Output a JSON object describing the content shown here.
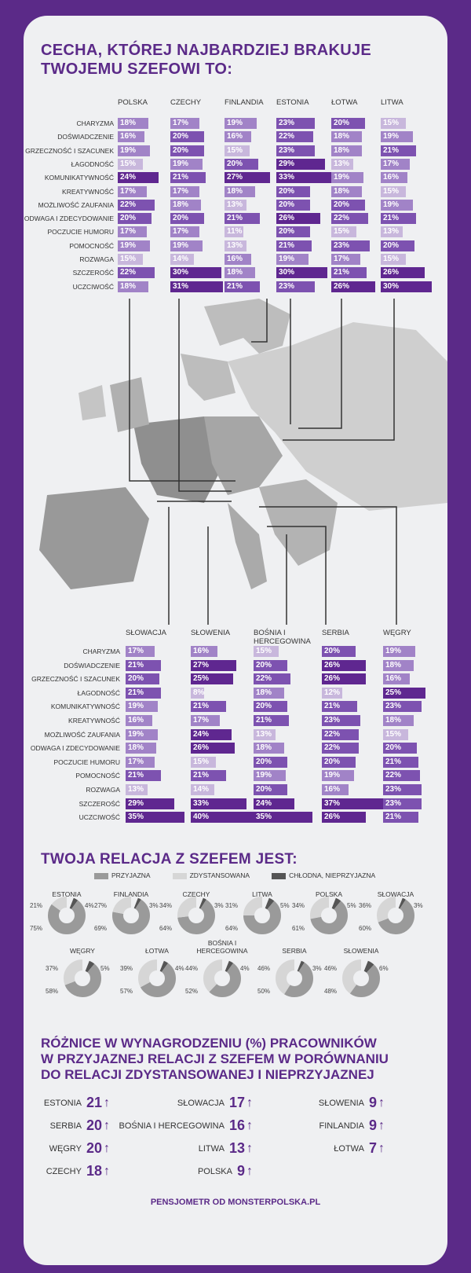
{
  "title_line1": "CECHA, KTÓREJ NAJBARDZIEJ BRAKUJE",
  "title_line2": "TWOJEMU SZEFOWI TO:",
  "traits": [
    "CHARYZMA",
    "DOŚWIADCZENIE",
    "GRZECZNOŚĆ I SZACUNEK",
    "ŁAGODNOŚĆ",
    "KOMUNIKATYWNOŚĆ",
    "KREATYWNOŚĆ",
    "MOŻLIWOŚĆ ZAUFANIA",
    "ODWAGA I ZDECYDOWANIE",
    "POCZUCIE HUMORU",
    "POMOCNOŚĆ",
    "ROZWAGA",
    "SZCZEROŚĆ",
    "UCZCIWOŚĆ"
  ],
  "chart_data": [
    {
      "type": "bar",
      "title": "Cecha, której najbardziej brakuje Twojemu szefowi to (część 1)",
      "unit": "%",
      "series": [
        {
          "name": "POLSKA",
          "values": [
            18,
            16,
            19,
            15,
            24,
            17,
            22,
            20,
            17,
            19,
            15,
            22,
            18
          ]
        },
        {
          "name": "CZECHY",
          "values": [
            17,
            20,
            20,
            19,
            21,
            17,
            18,
            20,
            17,
            19,
            14,
            30,
            31
          ]
        },
        {
          "name": "FINLANDIA",
          "values": [
            19,
            16,
            15,
            20,
            27,
            18,
            13,
            21,
            11,
            13,
            16,
            18,
            21
          ]
        },
        {
          "name": "ESTONIA",
          "values": [
            23,
            22,
            23,
            29,
            33,
            20,
            20,
            26,
            20,
            21,
            19,
            30,
            23
          ]
        },
        {
          "name": "ŁOTWA",
          "values": [
            20,
            18,
            18,
            13,
            19,
            18,
            20,
            22,
            15,
            23,
            17,
            21,
            26
          ]
        },
        {
          "name": "LITWA",
          "values": [
            15,
            19,
            21,
            17,
            16,
            15,
            19,
            21,
            13,
            20,
            15,
            26,
            30
          ]
        }
      ]
    },
    {
      "type": "bar",
      "title": "Cecha, której najbardziej brakuje Twojemu szefowi to (część 2)",
      "unit": "%",
      "series": [
        {
          "name": "SŁOWACJA",
          "values": [
            17,
            21,
            20,
            21,
            19,
            16,
            19,
            18,
            17,
            21,
            13,
            29,
            35
          ]
        },
        {
          "name": "SŁOWENIA",
          "values": [
            16,
            27,
            25,
            8,
            21,
            17,
            24,
            26,
            15,
            21,
            14,
            33,
            40
          ]
        },
        {
          "name": "BOŚNIA I HERCEGOWINA",
          "values": [
            15,
            20,
            22,
            18,
            20,
            21,
            13,
            18,
            20,
            19,
            20,
            24,
            35
          ]
        },
        {
          "name": "SERBIA",
          "values": [
            20,
            26,
            26,
            12,
            21,
            23,
            22,
            22,
            20,
            19,
            16,
            37,
            26
          ]
        },
        {
          "name": "WĘGRY",
          "values": [
            19,
            18,
            16,
            25,
            23,
            18,
            15,
            20,
            21,
            22,
            23,
            23,
            21
          ]
        }
      ]
    },
    {
      "type": "pie",
      "title": "TWOJA RELACJA Z SZEFEM JEST:",
      "legend": [
        "PRZYJAZNA",
        "ZDYSTANSOWANA",
        "CHŁODNA, NIEPRZYJAZNA"
      ],
      "colors": [
        "#9a9a9a",
        "#d6d6d6",
        "#555555"
      ],
      "countries": [
        {
          "name": "ESTONIA",
          "values": [
            75,
            21,
            4
          ]
        },
        {
          "name": "FINLANDIA",
          "values": [
            69,
            27,
            3
          ]
        },
        {
          "name": "CZECHY",
          "values": [
            64,
            34,
            3
          ]
        },
        {
          "name": "LITWA",
          "values": [
            64,
            31,
            5
          ]
        },
        {
          "name": "POLSKA",
          "values": [
            61,
            34,
            5
          ]
        },
        {
          "name": "SŁOWACJA",
          "values": [
            60,
            36,
            3
          ]
        },
        {
          "name": "WĘGRY",
          "values": [
            58,
            37,
            5
          ]
        },
        {
          "name": "ŁOTWA",
          "values": [
            57,
            39,
            4
          ]
        },
        {
          "name": "BOŚNIA I HERCEGOWINA",
          "values": [
            52,
            44,
            4
          ]
        },
        {
          "name": "SERBIA",
          "values": [
            50,
            46,
            3
          ]
        },
        {
          "name": "SŁOWENIA",
          "values": [
            48,
            46,
            6
          ]
        }
      ]
    },
    {
      "type": "table",
      "title": "RÓŻNICE W WYNAGRODZENIU (%) PRACOWNIKÓW W PRZYJAZNEJ RELACJI Z SZEFEM W PORÓWNANIU DO RELACJI ZDYSTANSOWANEJ I NIEPRZYJAZNEJ",
      "columns": [
        [
          {
            "name": "ESTONIA",
            "value": 21
          },
          {
            "name": "SERBIA",
            "value": 20
          },
          {
            "name": "WĘGRY",
            "value": 20
          },
          {
            "name": "CZECHY",
            "value": 18
          }
        ],
        [
          {
            "name": "SŁOWACJA",
            "value": 17
          },
          {
            "name": "BOŚNIA I HERCEGOWINA",
            "value": 16
          },
          {
            "name": "LITWA",
            "value": 13
          },
          {
            "name": "POLSKA",
            "value": 9
          }
        ],
        [
          {
            "name": "SŁOWENIA",
            "value": 9
          },
          {
            "name": "FINLANDIA",
            "value": 9
          },
          {
            "name": "ŁOTWA",
            "value": 7
          }
        ]
      ]
    }
  ],
  "relation_title": "TWOJA RELACJA Z SZEFEM JEST:",
  "salary_title": [
    "RÓŻNICE W WYNAGRODZENIU (%) PRACOWNIKÓW",
    "W PRZYJAZNEJ RELACJI Z SZEFEM W PORÓWNANIU",
    "DO RELACJI ZDYSTANSOWANEJ I NIEPRZYJAZNEJ"
  ],
  "footer": "PENSJOMETR OD MONSTERPOLSKA.PL"
}
